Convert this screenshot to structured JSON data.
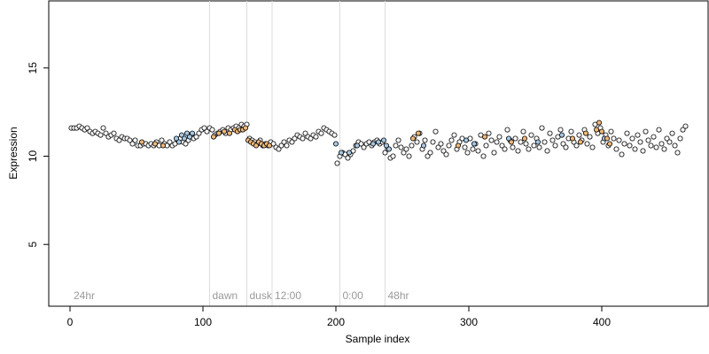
{
  "chart_data": {
    "type": "scatter",
    "xlabel": "Sample index",
    "ylabel": "Expression",
    "xlim": [
      -16,
      480
    ],
    "ylim": [
      1.5,
      18.8
    ],
    "x_ticks": [
      0,
      100,
      200,
      300,
      400
    ],
    "y_ticks": [
      5,
      10,
      15
    ],
    "grid": false,
    "legend": "none",
    "colors": {
      "point_default": "#ffffff",
      "point_blue": "#a6c8e6",
      "point_orange": "#f0b878",
      "point_stroke": "#000000",
      "vline": "#dcdcdc",
      "vline_label": "#9a9a9a"
    },
    "vertical_lines": [
      {
        "x": 105,
        "label": "dawn"
      },
      {
        "x": 133,
        "label": "dusk"
      },
      {
        "x": 152,
        "label": "12:00"
      },
      {
        "x": 203,
        "label": "0:00"
      },
      {
        "x": 237,
        "label": "48hr"
      }
    ],
    "corner_labels": [
      {
        "x": 2,
        "label": "24hr"
      }
    ],
    "series": [
      {
        "points": [
          [
            1,
            11.6
          ],
          [
            3,
            11.6
          ],
          [
            5,
            11.6
          ],
          [
            7,
            11.7
          ],
          [
            9,
            11.6
          ],
          [
            11,
            11.5
          ],
          [
            13,
            11.6
          ],
          [
            15,
            11.4
          ],
          [
            17,
            11.3
          ],
          [
            19,
            11.4
          ],
          [
            21,
            11.3
          ],
          [
            23,
            11.2
          ],
          [
            25,
            11.6
          ],
          [
            27,
            11.3
          ],
          [
            29,
            11.1
          ],
          [
            31,
            11.2
          ],
          [
            33,
            11.3
          ],
          [
            35,
            11.0
          ],
          [
            37,
            10.9
          ],
          [
            39,
            11.1
          ],
          [
            41,
            11.0
          ],
          [
            43,
            11.0
          ],
          [
            45,
            10.9
          ],
          [
            47,
            10.7
          ],
          [
            49,
            10.9
          ],
          [
            51,
            10.6
          ],
          [
            53,
            10.6
          ],
          [
            55,
            10.7
          ],
          [
            57,
            10.7
          ],
          [
            59,
            10.6
          ],
          [
            61,
            10.7
          ],
          [
            63,
            10.6
          ],
          [
            65,
            10.8
          ],
          [
            67,
            10.6
          ],
          [
            69,
            10.9
          ],
          [
            71,
            10.7
          ],
          [
            73,
            10.6
          ],
          [
            75,
            10.8
          ],
          [
            77,
            10.6
          ],
          [
            79,
            10.7
          ],
          [
            81,
            10.9
          ],
          [
            83,
            11.0
          ],
          [
            85,
            10.8
          ],
          [
            87,
            10.7
          ],
          [
            89,
            10.9
          ],
          [
            91,
            11.2
          ],
          [
            93,
            11.0
          ],
          [
            95,
            11.1
          ],
          [
            97,
            11.3
          ],
          [
            99,
            11.5
          ],
          [
            101,
            11.6
          ],
          [
            103,
            11.4
          ],
          [
            105,
            11.6
          ],
          [
            107,
            11.5
          ],
          [
            109,
            11.2
          ],
          [
            111,
            11.3
          ],
          [
            113,
            11.4
          ],
          [
            115,
            11.5
          ],
          [
            117,
            11.3
          ],
          [
            119,
            11.6
          ],
          [
            121,
            11.5
          ],
          [
            123,
            11.6
          ],
          [
            125,
            11.7
          ],
          [
            127,
            11.6
          ],
          [
            129,
            11.8
          ],
          [
            131,
            11.7
          ],
          [
            133,
            11.8
          ],
          [
            135,
            11.0
          ],
          [
            137,
            10.9
          ],
          [
            139,
            10.8
          ],
          [
            141,
            10.7
          ],
          [
            143,
            10.9
          ],
          [
            145,
            10.6
          ],
          [
            147,
            10.7
          ],
          [
            149,
            10.6
          ],
          [
            151,
            10.8
          ],
          [
            153,
            10.7
          ],
          [
            155,
            10.5
          ],
          [
            157,
            10.4
          ],
          [
            159,
            10.6
          ],
          [
            161,
            10.8
          ],
          [
            163,
            10.6
          ],
          [
            165,
            10.9
          ],
          [
            167,
            10.8
          ],
          [
            169,
            11.0
          ],
          [
            171,
            11.2
          ],
          [
            173,
            11.1
          ],
          [
            175,
            11.0
          ],
          [
            177,
            11.3
          ],
          [
            179,
            11.1
          ],
          [
            181,
            11.0
          ],
          [
            183,
            11.2
          ],
          [
            185,
            11.1
          ],
          [
            187,
            11.4
          ],
          [
            189,
            11.3
          ],
          [
            191,
            11.6
          ],
          [
            193,
            11.5
          ],
          [
            195,
            11.4
          ],
          [
            197,
            11.3
          ],
          [
            199,
            11.2
          ],
          [
            201,
            9.6
          ],
          [
            203,
            10.0
          ],
          [
            205,
            10.2
          ],
          [
            207,
            10.1
          ],
          [
            209,
            9.9
          ],
          [
            211,
            10.1
          ],
          [
            213,
            10.3
          ],
          [
            215,
            10.6
          ],
          [
            217,
            10.8
          ],
          [
            219,
            10.7
          ],
          [
            221,
            10.5
          ],
          [
            223,
            10.7
          ],
          [
            225,
            10.8
          ],
          [
            227,
            10.6
          ],
          [
            229,
            10.8
          ],
          [
            231,
            10.9
          ],
          [
            233,
            10.7
          ],
          [
            235,
            10.8
          ],
          [
            237,
            10.2
          ],
          [
            239,
            10.4
          ],
          [
            241,
            9.9
          ],
          [
            243,
            10.0
          ],
          [
            245,
            10.6
          ],
          [
            247,
            10.9
          ],
          [
            249,
            10.5
          ],
          [
            251,
            10.2
          ],
          [
            253,
            10.4
          ],
          [
            255,
            10.0
          ],
          [
            257,
            10.6
          ],
          [
            259,
            11.1
          ],
          [
            261,
            10.8
          ],
          [
            263,
            11.3
          ],
          [
            265,
            10.4
          ],
          [
            267,
            10.9
          ],
          [
            269,
            10.0
          ],
          [
            271,
            10.2
          ],
          [
            273,
            10.8
          ],
          [
            275,
            11.4
          ],
          [
            277,
            10.5
          ],
          [
            279,
            10.7
          ],
          [
            281,
            10.3
          ],
          [
            283,
            10.1
          ],
          [
            285,
            10.6
          ],
          [
            287,
            10.9
          ],
          [
            289,
            11.2
          ],
          [
            291,
            10.4
          ],
          [
            293,
            10.8
          ],
          [
            295,
            11.0
          ],
          [
            297,
            10.5
          ],
          [
            299,
            10.2
          ],
          [
            301,
            11.0
          ],
          [
            303,
            10.4
          ],
          [
            305,
            10.7
          ],
          [
            307,
            10.3
          ],
          [
            309,
            11.2
          ],
          [
            311,
            10.0
          ],
          [
            313,
            10.6
          ],
          [
            315,
            11.3
          ],
          [
            317,
            10.9
          ],
          [
            319,
            10.2
          ],
          [
            321,
            10.8
          ],
          [
            323,
            11.1
          ],
          [
            325,
            10.6
          ],
          [
            327,
            10.4
          ],
          [
            329,
            11.5
          ],
          [
            331,
            10.9
          ],
          [
            333,
            10.5
          ],
          [
            335,
            11.0
          ],
          [
            337,
            10.3
          ],
          [
            339,
            10.8
          ],
          [
            341,
            11.4
          ],
          [
            343,
            10.7
          ],
          [
            345,
            10.4
          ],
          [
            347,
            11.2
          ],
          [
            349,
            10.6
          ],
          [
            351,
            11.0
          ],
          [
            353,
            10.5
          ],
          [
            355,
            11.6
          ],
          [
            357,
            10.8
          ],
          [
            359,
            10.3
          ],
          [
            361,
            11.3
          ],
          [
            363,
            10.9
          ],
          [
            365,
            10.6
          ],
          [
            367,
            11.1
          ],
          [
            369,
            11.5
          ],
          [
            371,
            10.7
          ],
          [
            373,
            10.5
          ],
          [
            375,
            11.0
          ],
          [
            377,
            11.4
          ],
          [
            379,
            10.8
          ],
          [
            381,
            10.6
          ],
          [
            383,
            11.2
          ],
          [
            385,
            10.9
          ],
          [
            387,
            11.5
          ],
          [
            389,
            10.7
          ],
          [
            391,
            11.1
          ],
          [
            393,
            10.5
          ],
          [
            395,
            11.8
          ],
          [
            397,
            11.3
          ],
          [
            399,
            11.6
          ],
          [
            401,
            10.8
          ],
          [
            403,
            11.2
          ],
          [
            405,
            10.6
          ],
          [
            407,
            11.4
          ],
          [
            409,
            11.0
          ],
          [
            411,
            10.4
          ],
          [
            413,
            10.9
          ],
          [
            415,
            10.1
          ],
          [
            417,
            10.7
          ],
          [
            419,
            11.3
          ],
          [
            421,
            10.6
          ],
          [
            423,
            11.0
          ],
          [
            425,
            10.4
          ],
          [
            427,
            11.2
          ],
          [
            429,
            10.8
          ],
          [
            431,
            10.3
          ],
          [
            433,
            11.4
          ],
          [
            435,
            10.9
          ],
          [
            437,
            10.6
          ],
          [
            439,
            11.1
          ],
          [
            441,
            10.5
          ],
          [
            443,
            11.5
          ],
          [
            445,
            10.7
          ],
          [
            447,
            10.4
          ],
          [
            449,
            11.0
          ],
          [
            451,
            10.8
          ],
          [
            453,
            11.3
          ],
          [
            455,
            10.6
          ],
          [
            457,
            10.2
          ],
          [
            459,
            11.0
          ],
          [
            461,
            11.5
          ],
          [
            463,
            11.7
          ]
        ]
      },
      {
        "points": [
          [
            80,
            11.0
          ],
          [
            82,
            10.8
          ],
          [
            84,
            11.2
          ],
          [
            86,
            11.0
          ],
          [
            88,
            11.3
          ],
          [
            90,
            11.1
          ],
          [
            92,
            11.3
          ],
          [
            200,
            10.7
          ],
          [
            204,
            10.2
          ],
          [
            210,
            10.2
          ],
          [
            216,
            10.6
          ],
          [
            228,
            10.7
          ],
          [
            232,
            10.8
          ],
          [
            236,
            10.9
          ],
          [
            238,
            10.6
          ],
          [
            240,
            10.4
          ],
          [
            266,
            10.6
          ],
          [
            298,
            10.9
          ],
          [
            304,
            10.7
          ],
          [
            330,
            11.0
          ],
          [
            352,
            10.8
          ],
          [
            370,
            11.2
          ],
          [
            402,
            11.0
          ]
        ]
      },
      {
        "points": [
          [
            54,
            10.8
          ],
          [
            64,
            10.7
          ],
          [
            70,
            10.6
          ],
          [
            108,
            11.1
          ],
          [
            112,
            11.3
          ],
          [
            116,
            11.4
          ],
          [
            120,
            11.3
          ],
          [
            124,
            11.5
          ],
          [
            126,
            11.4
          ],
          [
            128,
            11.5
          ],
          [
            130,
            11.5
          ],
          [
            132,
            11.6
          ],
          [
            134,
            10.9
          ],
          [
            136,
            10.8
          ],
          [
            138,
            10.7
          ],
          [
            140,
            10.6
          ],
          [
            142,
            10.8
          ],
          [
            144,
            10.7
          ],
          [
            146,
            10.6
          ],
          [
            148,
            10.7
          ],
          [
            150,
            10.6
          ],
          [
            258,
            11.0
          ],
          [
            262,
            11.3
          ],
          [
            292,
            10.6
          ],
          [
            312,
            11.1
          ],
          [
            332,
            10.8
          ],
          [
            342,
            11.0
          ],
          [
            378,
            11.0
          ],
          [
            384,
            10.8
          ],
          [
            388,
            11.3
          ],
          [
            396,
            11.5
          ],
          [
            398,
            11.9
          ],
          [
            400,
            11.4
          ],
          [
            404,
            11.0
          ],
          [
            406,
            10.7
          ]
        ]
      }
    ]
  }
}
